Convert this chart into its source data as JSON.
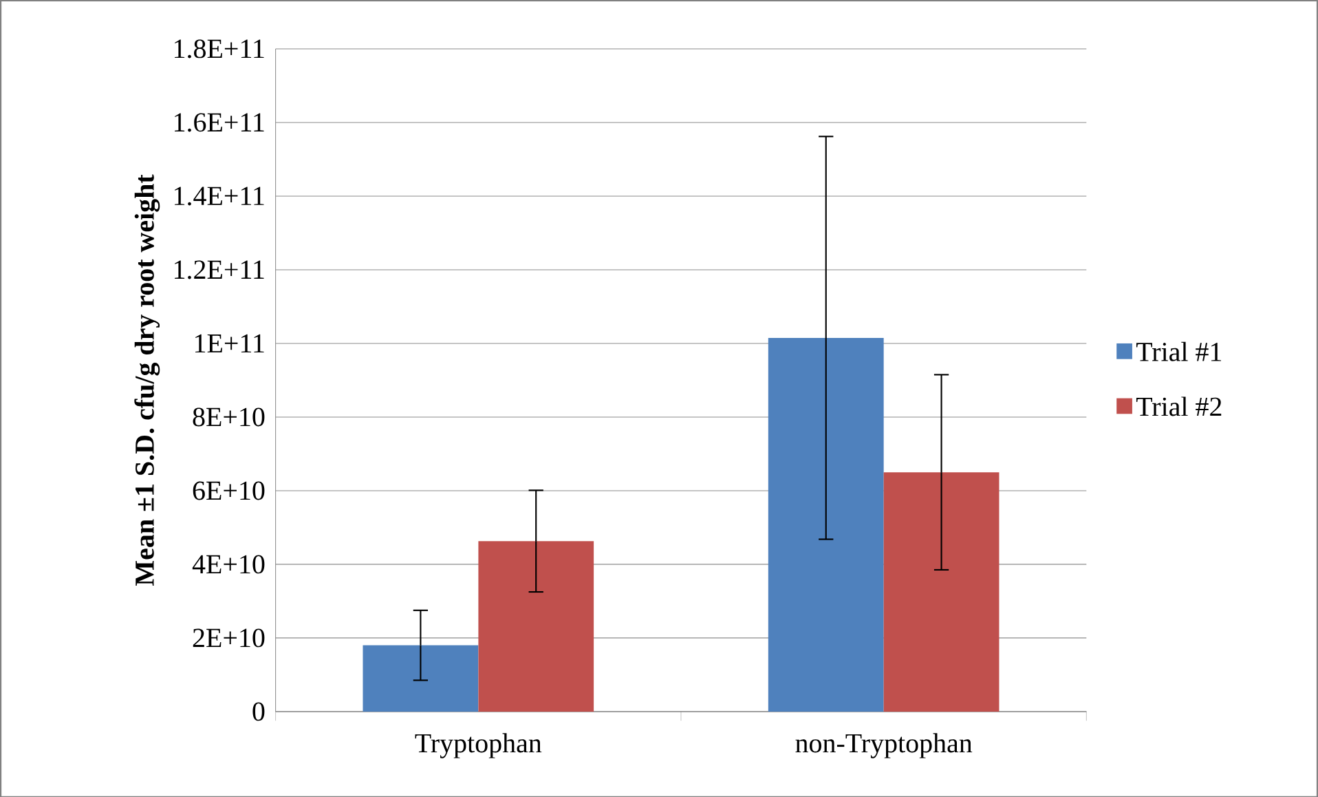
{
  "chart_data": {
    "type": "bar",
    "ylabel": "Mean ±1 S.D. cfu/g dry root weight",
    "categories": [
      "Tryptophan",
      "non-Tryptophan"
    ],
    "series": [
      {
        "name": "Trial #1",
        "color": "#4f81bd",
        "values": [
          18000000000.0,
          101500000000.0
        ],
        "errors": [
          9500000000.0,
          54700000000.0
        ]
      },
      {
        "name": "Trial #2",
        "color": "#c0504d",
        "values": [
          46300000000.0,
          65000000000.0
        ],
        "errors": [
          13800000000.0,
          26500000000.0
        ]
      }
    ],
    "ylim": [
      0,
      180000000000.0
    ],
    "yticks": [
      0,
      {
        "value": 20000000000.0,
        "label": "2E+10"
      },
      {
        "value": 40000000000.0,
        "label": "4E+10"
      },
      {
        "value": 60000000000.0,
        "label": "6E+10"
      },
      {
        "value": 80000000000.0,
        "label": "8E+10"
      },
      {
        "value": 100000000000.0,
        "label": "1E+11"
      },
      {
        "value": 120000000000.0,
        "label": "1.2E+11"
      },
      {
        "value": 140000000000.0,
        "label": "1.4E+11"
      },
      {
        "value": 160000000000.0,
        "label": "1.6E+11"
      },
      {
        "value": 180000000000.0,
        "label": "1.8E+11"
      }
    ],
    "grid": "y",
    "legend": "right"
  }
}
